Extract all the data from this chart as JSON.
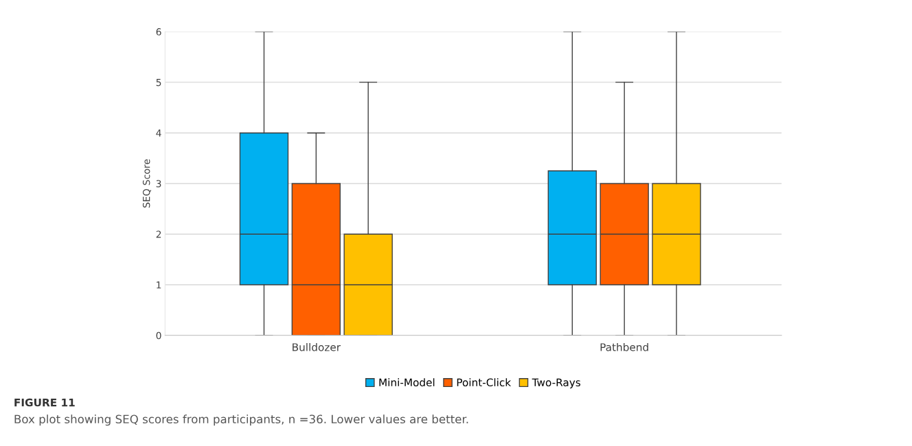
{
  "chart_data": {
    "type": "box",
    "ylabel": "SEQ Score",
    "categories": [
      "Bulldozer",
      "Pathbend"
    ],
    "series": [
      {
        "name": "Mini-Model",
        "color": "#00b0f0",
        "boxes": [
          {
            "low": 0,
            "q1": 1,
            "median": 2,
            "q3": 4,
            "high": 6
          },
          {
            "low": 0,
            "q1": 1,
            "median": 2,
            "q3": 3.25,
            "high": 6
          }
        ]
      },
      {
        "name": "Point-Click",
        "color": "#ff6000",
        "boxes": [
          {
            "low": 0,
            "q1": 0,
            "median": 1,
            "q3": 3,
            "high": 4
          },
          {
            "low": 0,
            "q1": 1,
            "median": 2,
            "q3": 3,
            "high": 5
          }
        ]
      },
      {
        "name": "Two-Rays",
        "color": "#ffc000",
        "boxes": [
          {
            "low": 0,
            "q1": 0,
            "median": 1,
            "q3": 2,
            "high": 5
          },
          {
            "low": 0,
            "q1": 1,
            "median": 2,
            "q3": 3,
            "high": 6
          }
        ]
      }
    ],
    "ylim": [
      0,
      6
    ],
    "yticks": [
      0,
      1,
      2,
      3,
      4,
      5,
      6
    ],
    "grid": "y",
    "legend": "bottom",
    "annotations": [
      "FIGURE 11",
      "Box plot showing SEQ scores from participants, n =36. Lower values are better."
    ]
  }
}
